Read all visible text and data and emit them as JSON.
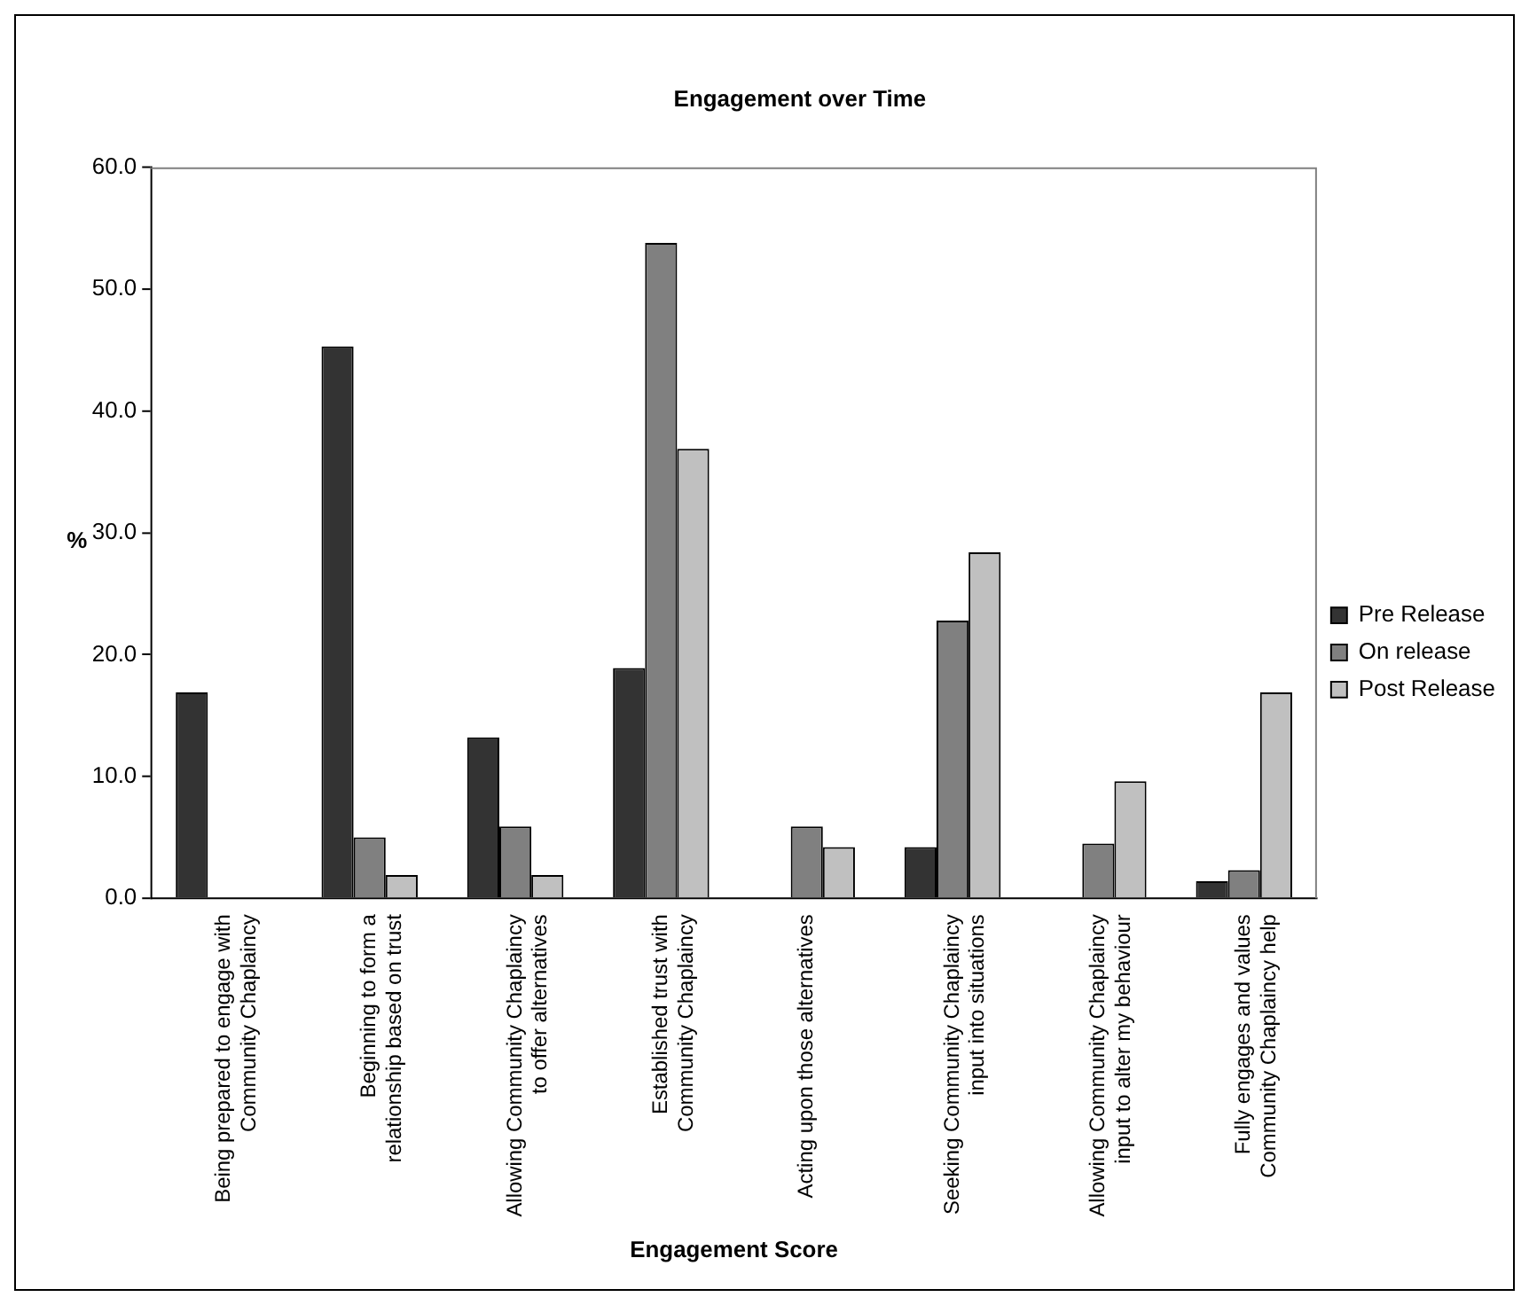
{
  "chart_data": {
    "type": "bar",
    "title": "Engagement over Time",
    "xlabel": "Engagement Score",
    "ylabel": "%",
    "categories": [
      "Being prepared to engage with Community Chaplaincy",
      "Beginning to form a relationship based on trust",
      "Allowing Community Chaplaincy to offer alternatives",
      "Established trust with Community Chaplaincy",
      "Acting upon those alternatives",
      "Seeking Community Chaplaincy input into situations",
      "Allowing Community Chaplaincy input to alter my behaviour",
      "Fully engages and values Community Chaplaincy help"
    ],
    "series": [
      {
        "name": "Pre Release",
        "color": "#333333",
        "values": [
          16.9,
          45.3,
          13.2,
          18.9,
          0,
          4.2,
          0,
          1.4
        ]
      },
      {
        "name": "On release",
        "color": "#808080",
        "values": [
          0,
          5.0,
          5.9,
          53.8,
          5.9,
          22.8,
          4.5,
          2.3
        ]
      },
      {
        "name": "Post Release",
        "color": "#c0c0c0",
        "values": [
          0,
          1.9,
          1.9,
          36.9,
          4.2,
          28.4,
          9.6,
          16.9
        ]
      }
    ],
    "ylim": [
      0,
      60
    ],
    "yticks": [
      {
        "value": 0,
        "label": "0.0"
      },
      {
        "value": 10,
        "label": "10.0"
      },
      {
        "value": 20,
        "label": "20.0"
      },
      {
        "value": 30,
        "label": "30.0"
      },
      {
        "value": 40,
        "label": "40.0"
      },
      {
        "value": 50,
        "label": "50.0"
      },
      {
        "value": 60,
        "label": "60.0"
      }
    ],
    "grid": false,
    "legend": "right"
  }
}
